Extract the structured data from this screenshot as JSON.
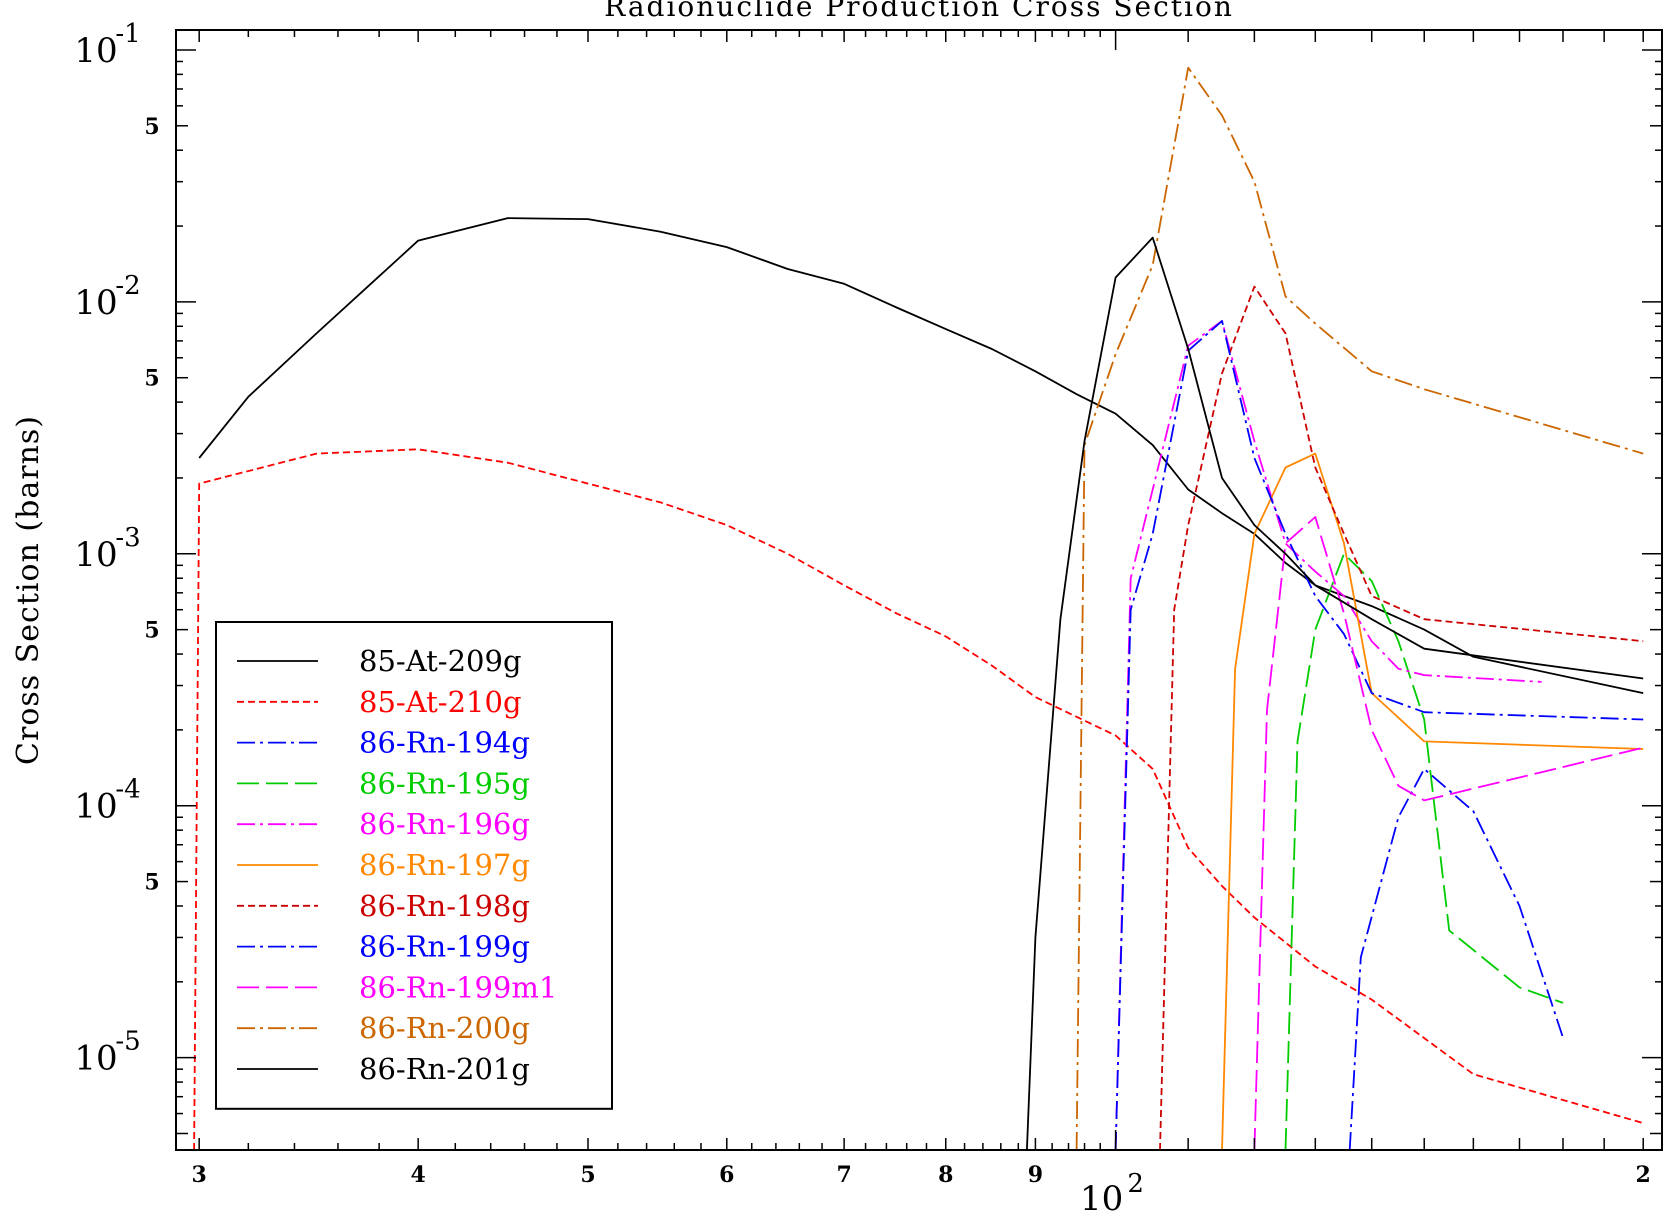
{
  "chart_data": {
    "type": "line",
    "title": "Radionuclide Production Cross Section",
    "ylabel": "Cross Section (barns)",
    "xlabel": "",
    "x_scale": "log",
    "y_scale": "log",
    "xlim": [
      29.1,
      205
    ],
    "ylim": [
      4.3e-06,
      0.12
    ],
    "grid": false,
    "legend_position": "lower-left",
    "x_ticks": [
      {
        "value": 30,
        "label": "3"
      },
      {
        "value": 40,
        "label": "4"
      },
      {
        "value": 50,
        "label": "5"
      },
      {
        "value": 60,
        "label": "6"
      },
      {
        "value": 70,
        "label": "7"
      },
      {
        "value": 80,
        "label": "8"
      },
      {
        "value": 90,
        "label": "9"
      },
      {
        "value": 200,
        "label": "2"
      }
    ],
    "x_decade_labels": [
      {
        "value": 100,
        "base": "10",
        "exp": "2"
      }
    ],
    "y_decade_ticks": [
      {
        "value": 0.1,
        "base": "10",
        "exp": "-1"
      },
      {
        "value": 0.01,
        "base": "10",
        "exp": "-2"
      },
      {
        "value": 0.001,
        "base": "10",
        "exp": "-3"
      },
      {
        "value": 0.0001,
        "base": "10",
        "exp": "-4"
      },
      {
        "value": 1e-05,
        "base": "10",
        "exp": "-5"
      }
    ],
    "y_minor_labels": [
      {
        "value": 0.05,
        "label": "5"
      },
      {
        "value": 0.005,
        "label": "5"
      },
      {
        "value": 0.0005,
        "label": "5"
      },
      {
        "value": 5e-05,
        "label": "5"
      }
    ],
    "series": [
      {
        "name": "85-At-209g",
        "color": "#000000",
        "dash": "solid",
        "points": [
          [
            30,
            0.0024
          ],
          [
            32,
            0.0042
          ],
          [
            35,
            0.0075
          ],
          [
            40,
            0.0175
          ],
          [
            45,
            0.0215
          ],
          [
            50,
            0.0213
          ],
          [
            55,
            0.019
          ],
          [
            60,
            0.0165
          ],
          [
            65,
            0.0135
          ],
          [
            70,
            0.0118
          ],
          [
            75,
            0.0095
          ],
          [
            80,
            0.0078
          ],
          [
            85,
            0.0065
          ],
          [
            90,
            0.0053
          ],
          [
            95,
            0.0043
          ],
          [
            100,
            0.0036
          ],
          [
            105,
            0.0027
          ],
          [
            110,
            0.0018
          ],
          [
            115,
            0.00145
          ],
          [
            120,
            0.0012
          ],
          [
            125,
            0.00092
          ],
          [
            130,
            0.00075
          ],
          [
            140,
            0.00062
          ],
          [
            150,
            0.0005
          ],
          [
            160,
            0.00039
          ],
          [
            200,
            0.00028
          ]
        ]
      },
      {
        "name": "85-At-210g",
        "color": "#ff0000",
        "dash": "short",
        "points": [
          [
            29.8,
            4.3e-06
          ],
          [
            30,
            0.0019
          ],
          [
            35,
            0.0025
          ],
          [
            40,
            0.0026
          ],
          [
            45,
            0.0023
          ],
          [
            50,
            0.0019
          ],
          [
            55,
            0.0016
          ],
          [
            60,
            0.0013
          ],
          [
            65,
            0.001
          ],
          [
            70,
            0.00075
          ],
          [
            75,
            0.00058
          ],
          [
            80,
            0.00047
          ],
          [
            85,
            0.00036
          ],
          [
            90,
            0.00027
          ],
          [
            100,
            0.00019
          ],
          [
            105,
            0.00014
          ],
          [
            110,
            6.8e-05
          ],
          [
            115,
            4.8e-05
          ],
          [
            120,
            3.6e-05
          ],
          [
            130,
            2.3e-05
          ],
          [
            140,
            1.7e-05
          ],
          [
            160,
            8.6e-06
          ],
          [
            200,
            5.5e-06
          ]
        ]
      },
      {
        "name": "86-Rn-194g",
        "color": "#0000ff",
        "dash": "dashdot",
        "points": [
          [
            136,
            4.3e-06
          ],
          [
            138,
            2.5e-05
          ],
          [
            145,
            9e-05
          ],
          [
            150,
            0.00014
          ],
          [
            160,
            9.5e-05
          ],
          [
            170,
            4e-05
          ],
          [
            180,
            1.2e-05
          ]
        ]
      },
      {
        "name": "86-Rn-195g",
        "color": "#00cc00",
        "dash": "long",
        "points": [
          [
            125,
            4.3e-06
          ],
          [
            127,
            0.00018
          ],
          [
            130,
            0.0005
          ],
          [
            135,
            0.001
          ],
          [
            140,
            0.00078
          ],
          [
            145,
            0.00045
          ],
          [
            150,
            0.00022
          ],
          [
            155,
            3.2e-05
          ],
          [
            170,
            1.9e-05
          ],
          [
            180,
            1.65e-05
          ]
        ]
      },
      {
        "name": "86-Rn-196g",
        "color": "#ff00ff",
        "dash": "dashdot",
        "points": [
          [
            100,
            4.3e-06
          ],
          [
            102,
            0.0008
          ],
          [
            105,
            0.0018
          ],
          [
            110,
            0.0067
          ],
          [
            115,
            0.0084
          ],
          [
            120,
            0.0028
          ],
          [
            125,
            0.0011
          ],
          [
            130,
            0.00085
          ],
          [
            135,
            0.00068
          ],
          [
            140,
            0.00045
          ],
          [
            145,
            0.00035
          ],
          [
            150,
            0.00033
          ],
          [
            175,
            0.00031
          ]
        ]
      },
      {
        "name": "86-Rn-197g",
        "color": "#ff8800",
        "dash": "solid",
        "points": [
          [
            115,
            4.3e-06
          ],
          [
            117,
            0.00035
          ],
          [
            120,
            0.0012
          ],
          [
            125,
            0.0022
          ],
          [
            130,
            0.0025
          ],
          [
            135,
            0.0011
          ],
          [
            140,
            0.00028
          ],
          [
            150,
            0.00018
          ],
          [
            200,
            0.000168
          ]
        ]
      },
      {
        "name": "86-Rn-198g",
        "color": "#cc0000",
        "dash": "short",
        "points": [
          [
            106,
            4.3e-06
          ],
          [
            108,
            0.0006
          ],
          [
            110,
            0.0013
          ],
          [
            115,
            0.0052
          ],
          [
            120,
            0.0115
          ],
          [
            125,
            0.0075
          ],
          [
            130,
            0.0022
          ],
          [
            135,
            0.0012
          ],
          [
            140,
            0.00068
          ],
          [
            150,
            0.00055
          ],
          [
            200,
            0.00045
          ]
        ]
      },
      {
        "name": "86-Rn-199g",
        "color": "#0000ff",
        "dash": "dashdot",
        "points": [
          [
            100,
            4.3e-06
          ],
          [
            102,
            0.0006
          ],
          [
            105,
            0.0012
          ],
          [
            110,
            0.0064
          ],
          [
            115,
            0.0084
          ],
          [
            120,
            0.0024
          ],
          [
            125,
            0.0012
          ],
          [
            130,
            0.00068
          ],
          [
            135,
            0.00048
          ],
          [
            140,
            0.00028
          ],
          [
            150,
            0.000235
          ],
          [
            200,
            0.00022
          ]
        ]
      },
      {
        "name": "86-Rn-199m1",
        "color": "#ff00ff",
        "dash": "long",
        "points": [
          [
            120,
            4.3e-06
          ],
          [
            122,
            0.00024
          ],
          [
            125,
            0.0011
          ],
          [
            130,
            0.0014
          ],
          [
            135,
            0.00058
          ],
          [
            140,
            0.0002
          ],
          [
            145,
            0.00012
          ],
          [
            150,
            0.000105
          ],
          [
            200,
            0.00017
          ]
        ]
      },
      {
        "name": "86-Rn-200g",
        "color": "#cc6600",
        "dash": "dashdot",
        "points": [
          [
            95,
            4.3e-06
          ],
          [
            96,
            0.0027
          ],
          [
            100,
            0.0062
          ],
          [
            105,
            0.014
          ],
          [
            110,
            0.085
          ],
          [
            115,
            0.055
          ],
          [
            120,
            0.03
          ],
          [
            125,
            0.0105
          ],
          [
            130,
            0.0082
          ],
          [
            140,
            0.0053
          ],
          [
            150,
            0.0045
          ],
          [
            200,
            0.0025
          ]
        ]
      },
      {
        "name": "86-Rn-201g",
        "color": "#000000",
        "dash": "solid",
        "points": [
          [
            89,
            4.3e-06
          ],
          [
            90,
            3e-05
          ],
          [
            93,
            0.00055
          ],
          [
            96,
            0.0028
          ],
          [
            100,
            0.0125
          ],
          [
            105,
            0.018
          ],
          [
            110,
            0.0065
          ],
          [
            115,
            0.002
          ],
          [
            120,
            0.0013
          ],
          [
            125,
            0.001
          ],
          [
            130,
            0.00075
          ],
          [
            140,
            0.00055
          ],
          [
            150,
            0.00042
          ],
          [
            200,
            0.00032
          ]
        ]
      }
    ]
  }
}
